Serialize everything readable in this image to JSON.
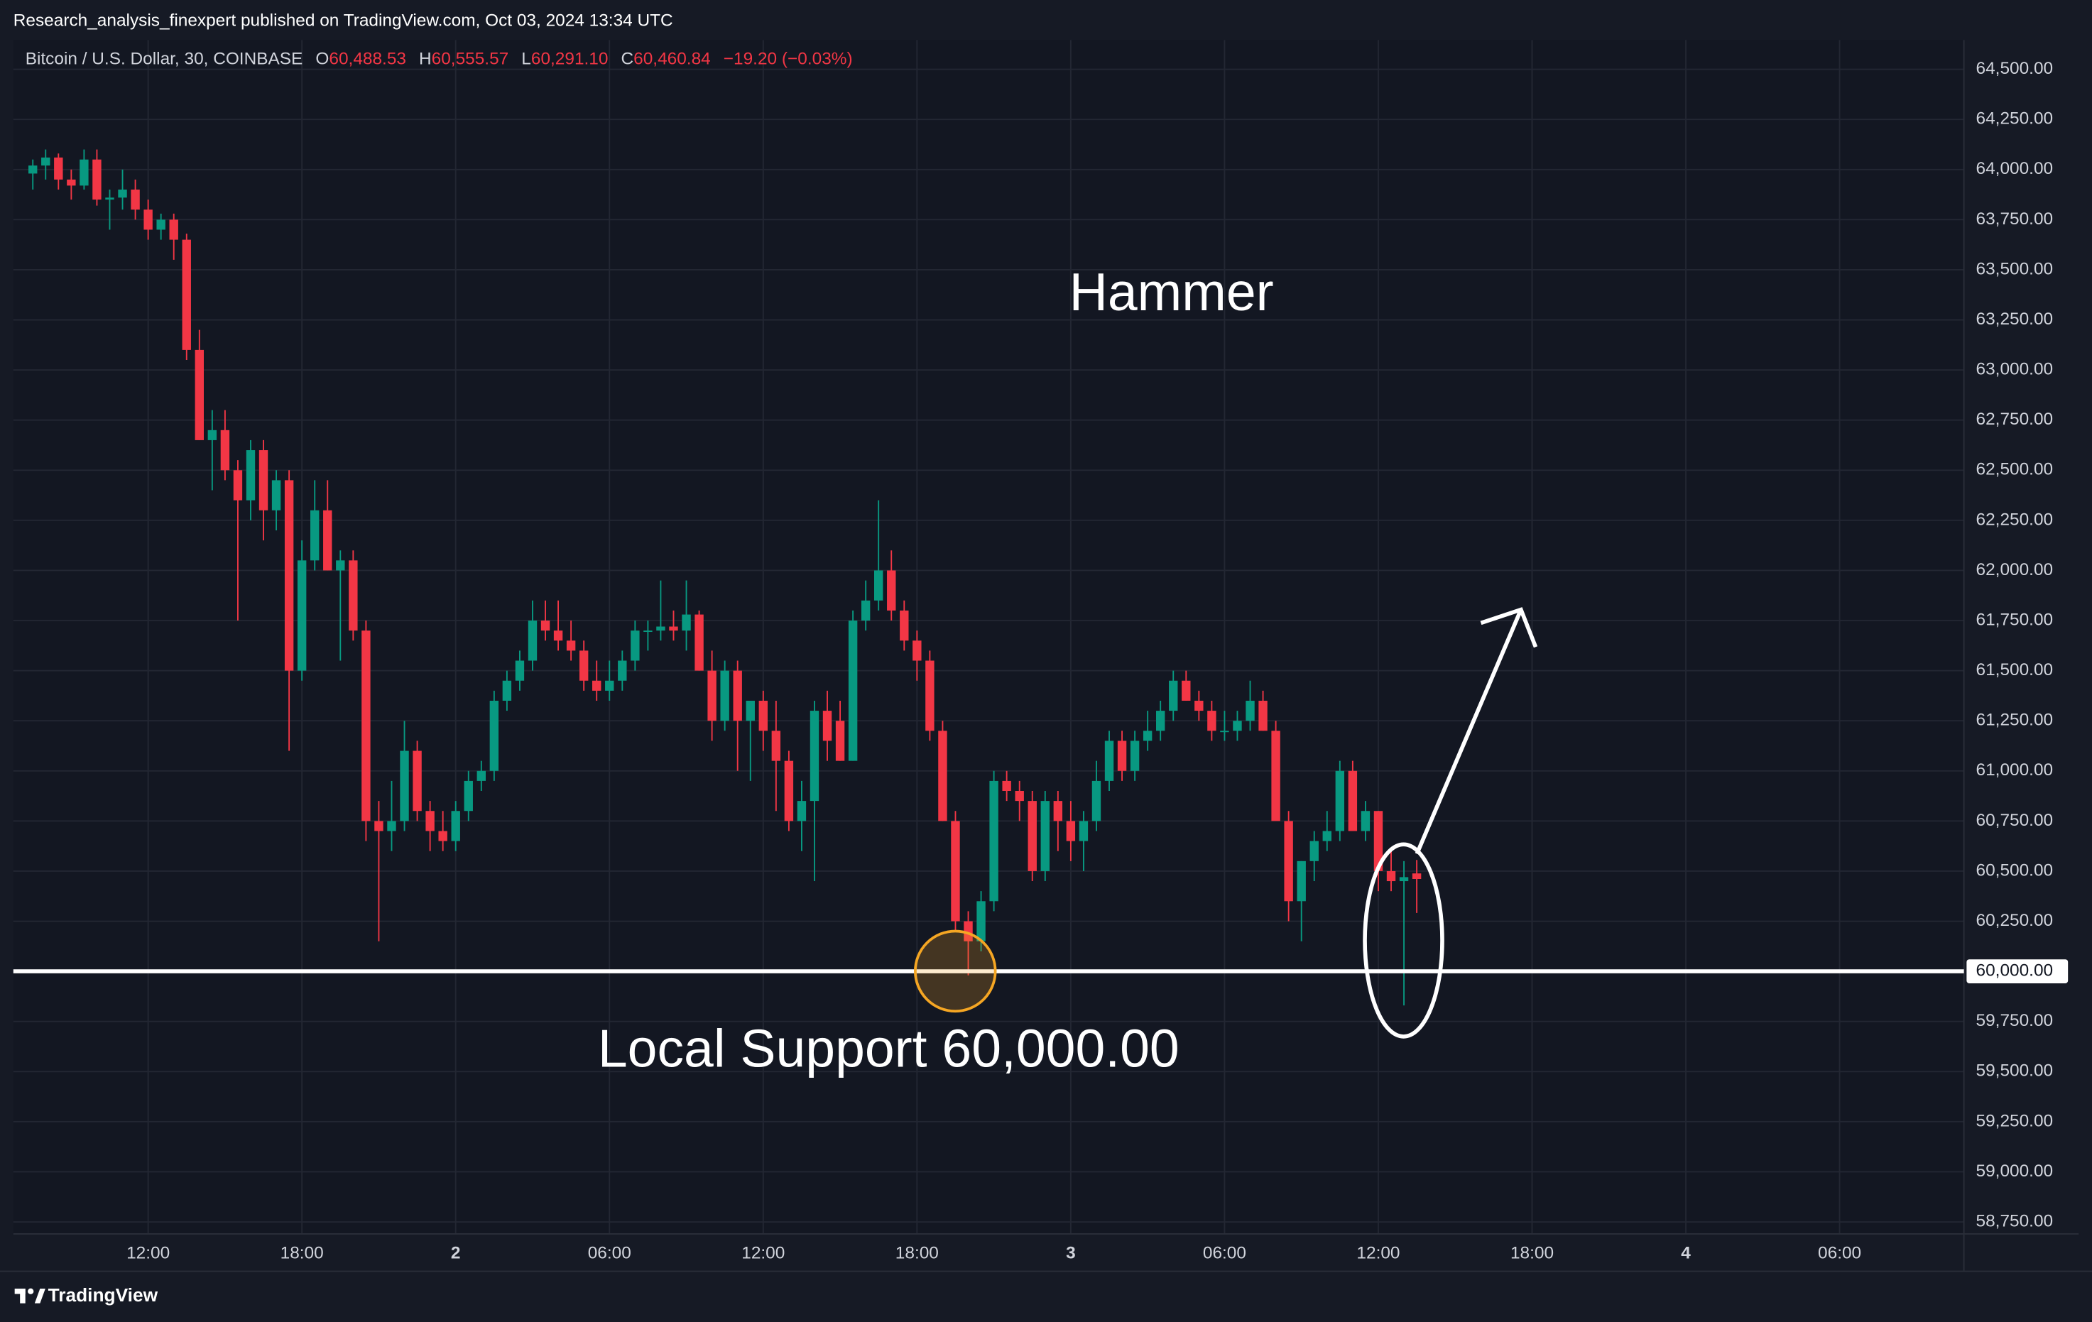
{
  "chart_data": {
    "type": "candlestick",
    "attribution": "Research_analysis_finexpert published on TradingView.com, Oct 03, 2024 13:34 UTC",
    "symbol": "Bitcoin / U.S. Dollar, 30, COINBASE",
    "ohlc_legend": [
      {
        "key": "O",
        "value": "60,488.53"
      },
      {
        "key": "H",
        "value": "60,555.57"
      },
      {
        "key": "L",
        "value": "60,291.10"
      },
      {
        "key": "C",
        "value": "60,460.84"
      }
    ],
    "change": "−19.20 (−0.03%)",
    "annotations": [
      "Hammer",
      "Local Support 60,000.00"
    ],
    "footer": "TradingView",
    "up_color": "#089981",
    "down_color": "#f23645",
    "support": {
      "value": 60000,
      "label": "60,000.00"
    },
    "x": [
      7.5,
      8,
      8.5,
      9,
      9.5,
      10,
      10.5,
      11,
      11.5,
      12,
      12.5,
      13,
      13.5,
      14,
      14.5,
      15,
      15.5,
      16,
      16.5,
      17,
      17.5,
      18,
      18.5,
      19,
      19.5,
      20,
      20.5,
      21,
      21.5,
      22,
      22.5,
      23,
      23.5,
      24,
      24.5,
      25,
      25.5,
      26,
      26.5,
      27,
      27.5,
      28,
      28.5,
      29,
      29.5,
      30,
      30.5,
      31,
      31.5,
      32,
      32.5,
      33,
      33.5,
      34,
      34.5,
      35,
      35.5,
      36,
      36.5,
      37,
      37.5,
      38,
      38.5,
      39,
      39.5,
      40,
      40.5,
      41,
      41.5,
      42,
      42.5,
      43,
      43.5,
      44,
      44.5,
      45,
      45.5,
      46,
      46.5,
      47,
      47.5,
      48,
      48.5,
      49,
      49.5,
      50,
      50.5,
      51,
      51.5,
      52,
      52.5,
      53,
      53.5,
      54,
      54.5,
      55,
      55.5,
      56,
      56.5,
      57,
      57.5,
      58,
      58.5,
      59,
      59.5,
      60,
      60.5,
      61,
      61.5
    ],
    "open": [
      63980,
      64020,
      64060,
      63950,
      63920,
      64050,
      63850,
      63860,
      63900,
      63800,
      63700,
      63750,
      63650,
      63100,
      62650,
      62700,
      62500,
      62350,
      62600,
      62300,
      62450,
      61500,
      62050,
      62300,
      62000,
      62050,
      61700,
      60750,
      60700,
      60750,
      61100,
      60800,
      60700,
      60650,
      60800,
      60950,
      61000,
      61350,
      61450,
      61550,
      61750,
      61700,
      61650,
      61600,
      61450,
      61400,
      61450,
      61550,
      61700,
      61700,
      61720,
      61700,
      61780,
      61500,
      61250,
      61500,
      61250,
      61350,
      61200,
      61050,
      60750,
      60850,
      61300,
      61250,
      61050,
      61750,
      61850,
      62000,
      61800,
      61650,
      61550,
      61200,
      60750,
      60250,
      60150,
      60350,
      60950,
      60900,
      60850,
      60500,
      60850,
      60750,
      60650,
      60750,
      60950,
      61150,
      61000,
      61150,
      61200,
      61300,
      61450,
      61350,
      61300,
      61200,
      61200,
      61250,
      61350,
      61200,
      60750,
      60350,
      60550,
      60650,
      60700,
      61000,
      60700,
      60800,
      60500,
      60450,
      60488.53
    ],
    "high": [
      64050,
      64100,
      64080,
      64000,
      64100,
      64100,
      63900,
      64000,
      63950,
      63850,
      63780,
      63780,
      63680,
      63200,
      62800,
      62800,
      62550,
      62650,
      62650,
      62500,
      62500,
      62150,
      62450,
      62450,
      62100,
      62100,
      61750,
      60850,
      60950,
      61250,
      61150,
      60850,
      60800,
      60850,
      61000,
      61050,
      61400,
      61500,
      61600,
      61850,
      61850,
      61850,
      61750,
      61650,
      61550,
      61550,
      61600,
      61750,
      61750,
      61950,
      61800,
      61950,
      61800,
      61600,
      61550,
      61550,
      61350,
      61400,
      61350,
      61100,
      60950,
      61350,
      61400,
      61350,
      61800,
      61950,
      62350,
      62100,
      61850,
      61700,
      61600,
      61250,
      60800,
      60300,
      60400,
      61000,
      61000,
      60950,
      60900,
      60900,
      60900,
      60850,
      60800,
      61050,
      61200,
      61200,
      61200,
      61300,
      61350,
      61500,
      61500,
      61400,
      61350,
      61300,
      61300,
      61450,
      61400,
      61250,
      60800,
      60550,
      60700,
      60800,
      61050,
      61050,
      60850,
      60800,
      60600,
      60550,
      60555.57
    ],
    "low": [
      63900,
      63950,
      63900,
      63850,
      63900,
      63820,
      63700,
      63800,
      63750,
      63650,
      63650,
      63550,
      63050,
      62650,
      62400,
      62450,
      61750,
      62250,
      62150,
      62200,
      61100,
      61450,
      62000,
      62000,
      61550,
      61650,
      60650,
      60150,
      60600,
      60700,
      60750,
      60600,
      60600,
      60600,
      60750,
      60900,
      60950,
      61300,
      61400,
      61500,
      61650,
      61600,
      61550,
      61400,
      61350,
      61350,
      61400,
      61500,
      61600,
      61650,
      61650,
      61600,
      61500,
      61150,
      61200,
      61000,
      60950,
      61100,
      60800,
      60700,
      60600,
      60450,
      61050,
      61050,
      61050,
      61700,
      61800,
      61750,
      61600,
      61450,
      61150,
      60750,
      60200,
      59980,
      60100,
      60300,
      60850,
      60750,
      60450,
      60450,
      60600,
      60550,
      60500,
      60700,
      60900,
      60950,
      60950,
      61100,
      61150,
      61250,
      61350,
      61250,
      61150,
      61150,
      61150,
      61200,
      61200,
      60800,
      60250,
      60150,
      60450,
      60600,
      60650,
      60700,
      60650,
      60400,
      60400,
      59830,
      60291.1
    ],
    "close": [
      64020,
      64060,
      63950,
      63920,
      64050,
      63850,
      63860,
      63900,
      63800,
      63700,
      63750,
      63650,
      63100,
      62650,
      62700,
      62500,
      62350,
      62600,
      62300,
      62450,
      61500,
      62050,
      62300,
      62000,
      62050,
      61700,
      60750,
      60700,
      60750,
      61100,
      60800,
      60700,
      60650,
      60800,
      60950,
      61000,
      61350,
      61450,
      61550,
      61750,
      61700,
      61650,
      61600,
      61450,
      61400,
      61450,
      61550,
      61700,
      61700,
      61720,
      61700,
      61780,
      61500,
      61250,
      61500,
      61250,
      61350,
      61200,
      61050,
      60750,
      60850,
      61300,
      61150,
      61050,
      61750,
      61850,
      62000,
      61800,
      61650,
      61550,
      61200,
      60750,
      60250,
      60150,
      60350,
      60950,
      60900,
      60850,
      60500,
      60850,
      60750,
      60650,
      60750,
      60950,
      61150,
      61000,
      61150,
      61200,
      61300,
      61450,
      61350,
      61300,
      61200,
      61200,
      61250,
      61350,
      61200,
      60750,
      60350,
      60550,
      60650,
      60700,
      61000,
      60700,
      60800,
      60500,
      60450,
      60470,
      60460.84
    ],
    "xlim": [
      6.74,
      82.85
    ],
    "xticks": [
      {
        "value": 12,
        "label": "12:00"
      },
      {
        "value": 18,
        "label": "18:00"
      },
      {
        "value": 24,
        "label": "2"
      },
      {
        "value": 30,
        "label": "06:00"
      },
      {
        "value": 36,
        "label": "12:00"
      },
      {
        "value": 42,
        "label": "18:00"
      },
      {
        "value": 48,
        "label": "3"
      },
      {
        "value": 54,
        "label": "06:00"
      },
      {
        "value": 60,
        "label": "12:00"
      },
      {
        "value": 66,
        "label": "18:00"
      },
      {
        "value": 72,
        "label": "4"
      },
      {
        "value": 78,
        "label": "06:00"
      }
    ],
    "ylim": [
      58690,
      64646
    ],
    "yticks": [
      {
        "value": 58750,
        "label": "58,750.00"
      },
      {
        "value": 59000,
        "label": "59,000.00"
      },
      {
        "value": 59250,
        "label": "59,250.00"
      },
      {
        "value": 59500,
        "label": "59,500.00"
      },
      {
        "value": 59750,
        "label": "59,750.00"
      },
      {
        "value": 60250,
        "label": "60,250.00"
      },
      {
        "value": 60500,
        "label": "60,500.00"
      },
      {
        "value": 60750,
        "label": "60,750.00"
      },
      {
        "value": 61000,
        "label": "61,000.00"
      },
      {
        "value": 61250,
        "label": "61,250.00"
      },
      {
        "value": 61500,
        "label": "61,500.00"
      },
      {
        "value": 61750,
        "label": "61,750.00"
      },
      {
        "value": 62000,
        "label": "62,000.00"
      },
      {
        "value": 62250,
        "label": "62,250.00"
      },
      {
        "value": 62500,
        "label": "62,500.00"
      },
      {
        "value": 62750,
        "label": "62,750.00"
      },
      {
        "value": 63000,
        "label": "63,000.00"
      },
      {
        "value": 63250,
        "label": "63,250.00"
      },
      {
        "value": 63500,
        "label": "63,500.00"
      },
      {
        "value": 63750,
        "label": "63,750.00"
      },
      {
        "value": 64000,
        "label": "64,000.00"
      },
      {
        "value": 64250,
        "label": "64,250.00"
      },
      {
        "value": 64500,
        "label": "64,500.00"
      }
    ],
    "grid": true
  }
}
